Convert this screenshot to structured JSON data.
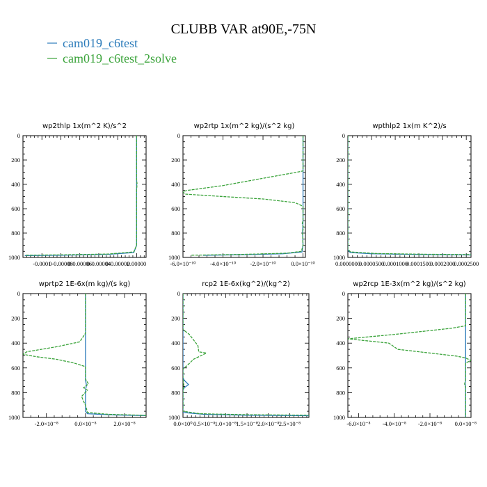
{
  "figure": {
    "title": "CLUBB VAR at90E,-75N",
    "legend": [
      {
        "label": "cam019_c6test",
        "color": "#2b7bba"
      },
      {
        "label": "cam019_c6test_2solve",
        "color": "#3aa33a"
      }
    ]
  },
  "chart_data": [
    {
      "type": "line",
      "title": "wp2thlp  1x(m^2 K)/s^2",
      "xlim": [
        -0.00012,
        1e-05
      ],
      "ylim": [
        1000,
        0
      ],
      "y_ticks": [
        0,
        200,
        400,
        600,
        800,
        1000
      ],
      "x_ticks": [
        -0.0001,
        -8e-05,
        -6e-05,
        -4e-05,
        -2e-05,
        0.0
      ],
      "x_tick_labels": [
        "-0.0001",
        "0-0.00008",
        "0-0.00006",
        "0-0.00004",
        "0-0.00002",
        "0.00000"
      ],
      "series": [
        {
          "color": "#2b7bba",
          "points": [
            [
              0,
              0
            ],
            [
              0,
              900
            ],
            [
              -3e-06,
              960
            ],
            [
              -3e-05,
              975
            ],
            [
              -8e-05,
              982
            ],
            [
              -0.000118,
              985
            ]
          ]
        },
        {
          "color": "#3aa33a",
          "dashed": true,
          "points": [
            [
              0,
              0
            ],
            [
              0,
              360
            ],
            [
              5e-07,
              400
            ],
            [
              0,
              440
            ],
            [
              0,
              900
            ],
            [
              -3e-06,
              955
            ],
            [
              -3e-05,
              972
            ],
            [
              -8e-05,
              979
            ],
            [
              -0.000118,
              982
            ]
          ]
        }
      ]
    },
    {
      "type": "line",
      "title": "wp2rtp  1x(m^2 kg)/(s^2 kg)",
      "xlim": [
        -6e-10,
        1.2e-11
      ],
      "ylim": [
        1000,
        0
      ],
      "y_ticks": [
        0,
        200,
        400,
        600,
        800,
        1000
      ],
      "x_ticks": [
        -6e-10,
        -4e-10,
        -2e-10,
        0
      ],
      "x_tick_labels": [
        "-6.0×10⁻¹⁰",
        "-4.0×10⁻¹⁰",
        "-2.0×10⁻¹⁰",
        "0.0×10⁻¹⁰"
      ],
      "series": [
        {
          "color": "#2b7bba",
          "points": [
            [
              0,
              0
            ],
            [
              0,
              700
            ],
            [
              -2e-12,
              800
            ],
            [
              0,
              900
            ],
            [
              -5e-12,
              955
            ],
            [
              -1e-10,
              970
            ],
            [
              -3e-10,
              978
            ],
            [
              -5e-10,
              983
            ]
          ]
        },
        {
          "color": "#3aa33a",
          "dashed": true,
          "points": [
            [
              0,
              0
            ],
            [
              0,
              290
            ],
            [
              -3e-11,
              300
            ],
            [
              -2e-10,
              350
            ],
            [
              -4e-10,
              410
            ],
            [
              -5.8e-10,
              450
            ],
            [
              -6e-10,
              460
            ],
            [
              -5.9e-10,
              480
            ],
            [
              -4e-10,
              500
            ],
            [
              -2e-10,
              520
            ],
            [
              -4e-11,
              550
            ],
            [
              0,
              580
            ],
            [
              0,
              700
            ],
            [
              -4e-12,
              720
            ],
            [
              2e-12,
              750
            ],
            [
              -2e-12,
              800
            ],
            [
              0,
              900
            ],
            [
              -8e-12,
              950
            ],
            [
              -8e-11,
              965
            ],
            [
              -3e-10,
              975
            ],
            [
              -5.6e-10,
              982
            ]
          ]
        }
      ]
    },
    {
      "type": "line",
      "title": "wpthlp2  1x(m K^2)/s",
      "xlim": [
        0,
        0.00026
      ],
      "ylim": [
        1000,
        0
      ],
      "y_ticks": [
        0,
        200,
        400,
        600,
        800,
        1000
      ],
      "x_ticks": [
        0,
        5e-05,
        0.0001,
        0.00015,
        0.0002,
        0.00025
      ],
      "x_tick_labels": [
        "0.0000000",
        "0.0000500",
        "0.0001000",
        "0.0001500",
        "0.0002000",
        "0.0002500"
      ],
      "series": [
        {
          "color": "#2b7bba",
          "points": [
            [
              0,
              0
            ],
            [
              0,
              940
            ],
            [
              5e-06,
              960
            ],
            [
              5e-05,
              970
            ],
            [
              0.00015,
              976
            ],
            [
              0.00026,
              980
            ]
          ]
        },
        {
          "color": "#3aa33a",
          "dashed": true,
          "points": [
            [
              0,
              0
            ],
            [
              0,
              935
            ],
            [
              6e-06,
              955
            ],
            [
              6e-05,
              968
            ],
            [
              0.00016,
              974
            ],
            [
              0.00026,
              977
            ]
          ]
        }
      ]
    },
    {
      "type": "line",
      "title": "wprtp2  1E-6x(m kg)/(s kg)",
      "xlim": [
        -3.2e-08,
        3.1e-08
      ],
      "ylim": [
        1000,
        0
      ],
      "y_ticks": [
        0,
        200,
        400,
        600,
        800,
        1000
      ],
      "x_ticks": [
        -2e-08,
        0,
        2e-08
      ],
      "x_tick_labels": [
        "-2.0×10⁻⁸",
        "0.0×10⁻⁸",
        "2.0×10⁻⁸"
      ],
      "series": [
        {
          "color": "#2b7bba",
          "points": [
            [
              0,
              0
            ],
            [
              0,
              700
            ],
            [
              5e-10,
              740
            ],
            [
              0,
              780
            ],
            [
              0,
              950
            ],
            [
              1e-09,
              970
            ],
            [
              1.5e-08,
              980
            ],
            [
              3.1e-08,
              985
            ]
          ]
        },
        {
          "color": "#3aa33a",
          "dashed": true,
          "points": [
            [
              0,
              0
            ],
            [
              0,
              320
            ],
            [
              -3e-09,
              390
            ],
            [
              -1.5e-08,
              430
            ],
            [
              -3e-08,
              470
            ],
            [
              -3.2e-08,
              490
            ],
            [
              -2.5e-08,
              510
            ],
            [
              -1.5e-08,
              530
            ],
            [
              -6e-09,
              560
            ],
            [
              0,
              590
            ],
            [
              0,
              690
            ],
            [
              1.5e-09,
              730
            ],
            [
              -1e-09,
              760
            ],
            [
              1e-09,
              780
            ],
            [
              -2e-09,
              830
            ],
            [
              -1e-09,
              870
            ],
            [
              0,
              900
            ],
            [
              1e-09,
              960
            ],
            [
              1.2e-08,
              975
            ],
            [
              2.8e-08,
              982
            ],
            [
              3.1e-08,
              984
            ]
          ]
        }
      ]
    },
    {
      "type": "line",
      "title": "rcp2  1E-6x(kg^2)/(kg^2)",
      "xlim": [
        0,
        2.95e-08
      ],
      "ylim": [
        1000,
        0
      ],
      "y_ticks": [
        0,
        200,
        400,
        600,
        800,
        1000
      ],
      "x_ticks": [
        0,
        5e-09,
        1e-08,
        1.5e-08,
        2e-08,
        2.5e-08
      ],
      "x_tick_labels": [
        "0.0×10⁰",
        "0.5×10⁻⁸",
        "1.0×10⁻⁸",
        "1.5×10⁻⁸",
        "2.0×10⁻⁸",
        "2.5×10⁻⁸"
      ],
      "series": [
        {
          "color": "#2b7bba",
          "points": [
            [
              0,
              0
            ],
            [
              0,
              680
            ],
            [
              3e-10,
              700
            ],
            [
              1.3e-09,
              735
            ],
            [
              3e-10,
              760
            ],
            [
              0,
              780
            ],
            [
              0,
              960
            ],
            [
              5e-09,
              975
            ],
            [
              1.5e-08,
              982
            ],
            [
              2.95e-08,
              986
            ]
          ]
        },
        {
          "color": "#3aa33a",
          "dashed": true,
          "points": [
            [
              0,
              0
            ],
            [
              0,
              290
            ],
            [
              1.5e-09,
              330
            ],
            [
              3.5e-09,
              420
            ],
            [
              3.7e-09,
              470
            ],
            [
              5.5e-09,
              480
            ],
            [
              2.5e-09,
              530
            ],
            [
              1e-09,
              580
            ],
            [
              0,
              610
            ],
            [
              0,
              700
            ],
            [
              2e-10,
              740
            ],
            [
              0,
              780
            ],
            [
              0,
              950
            ],
            [
              4e-09,
              970
            ],
            [
              1.5e-08,
              978
            ],
            [
              2.95e-08,
              982
            ]
          ]
        }
      ]
    },
    {
      "type": "line",
      "title": "wp2rcp  1E-3x(m^2 kg)/(s^2 kg)",
      "xlim": [
        -6.6e-08,
        3e-09
      ],
      "ylim": [
        1000,
        0
      ],
      "y_ticks": [
        0,
        200,
        400,
        600,
        800,
        1000
      ],
      "x_ticks": [
        -6e-08,
        -4e-08,
        -2e-08,
        0
      ],
      "x_tick_labels": [
        "-6.0×10⁻⁸",
        "-4.0×10⁻⁸",
        "-2.0×10⁻⁸",
        "0.0×10⁻⁸"
      ],
      "series": [
        {
          "color": "#2b7bba",
          "points": [
            [
              0,
              0
            ],
            [
              0,
              700
            ],
            [
              -3e-10,
              720
            ],
            [
              0,
              760
            ],
            [
              0,
              1000
            ]
          ]
        },
        {
          "color": "#3aa33a",
          "dashed": true,
          "points": [
            [
              0,
              0
            ],
            [
              0,
              260
            ],
            [
              -8e-09,
              280
            ],
            [
              -4e-08,
              330
            ],
            [
              -6.6e-08,
              365
            ],
            [
              -4.3e-08,
              400
            ],
            [
              -4.1e-08,
              420
            ],
            [
              -3.8e-08,
              450
            ],
            [
              -2e-08,
              480
            ],
            [
              -5e-09,
              505
            ],
            [
              0,
              520
            ],
            [
              3e-09,
              540
            ],
            [
              0,
              560
            ],
            [
              0,
              700
            ],
            [
              -6e-10,
              730
            ],
            [
              0,
              760
            ],
            [
              0,
              1000
            ]
          ]
        }
      ]
    }
  ]
}
